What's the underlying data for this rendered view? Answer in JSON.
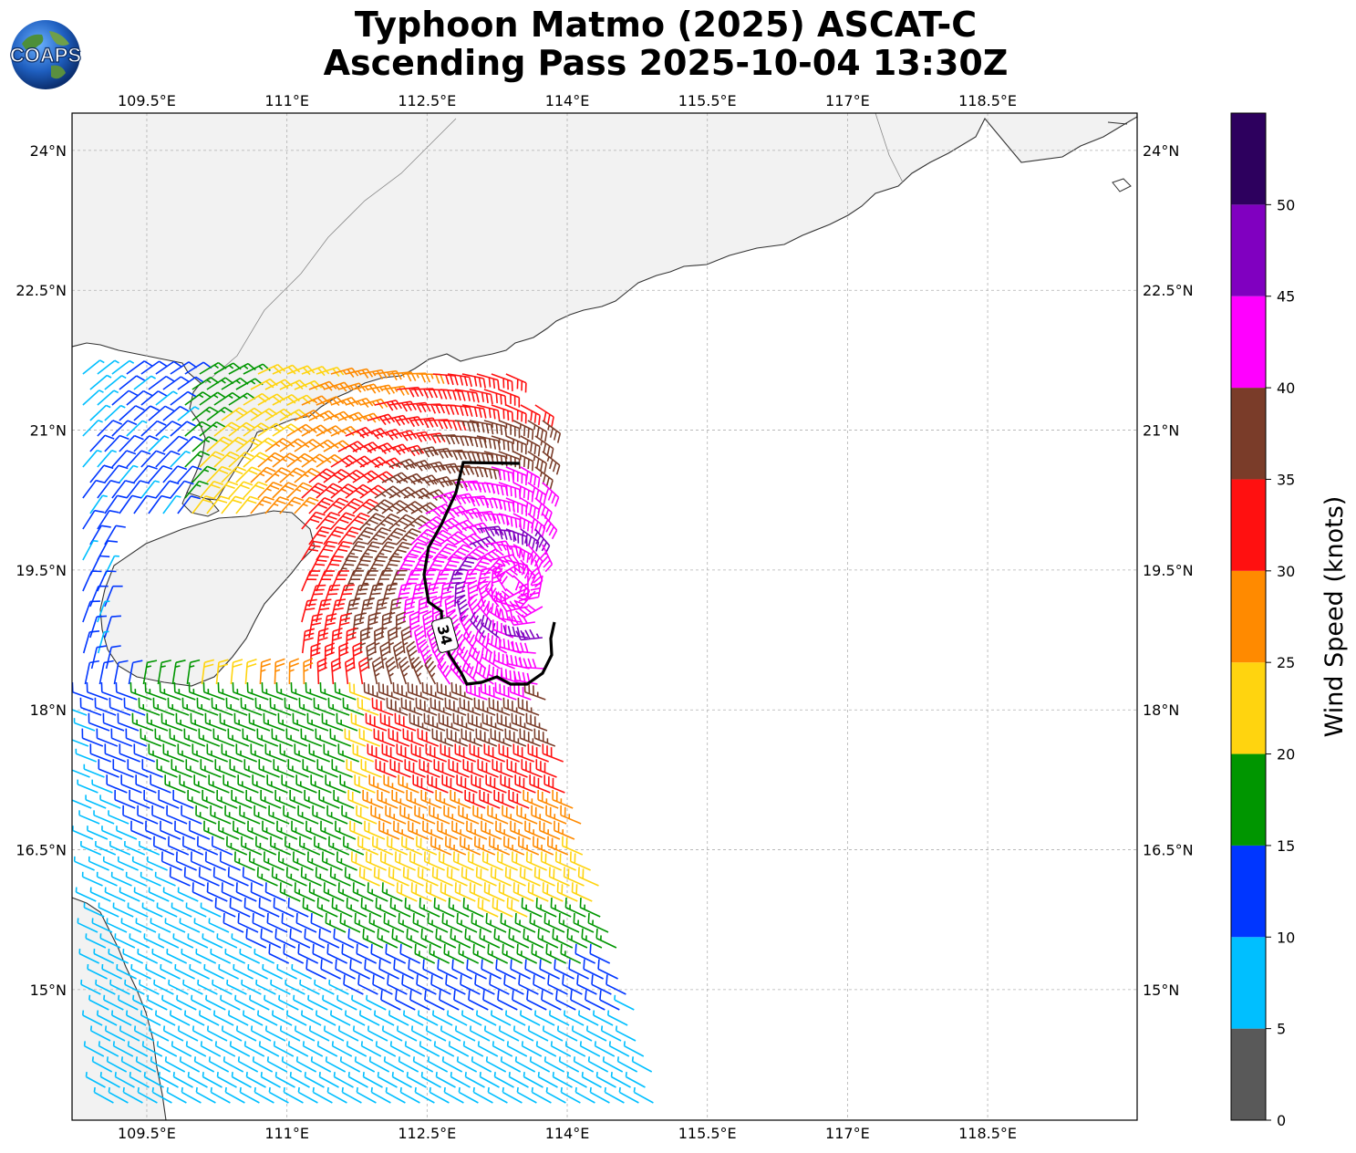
{
  "title": {
    "line1": "Typhoon Matmo (2025) ASCAT-C",
    "line2": "Ascending Pass 2025-10-04 13:30Z"
  },
  "logo": {
    "text": "COAPS"
  },
  "map": {
    "lon_range": [
      108.7,
      120.1
    ],
    "lat_range": [
      13.6,
      24.4
    ],
    "lon_ticks": [
      "109.5°E",
      "111°E",
      "112.5°E",
      "114°E",
      "115.5°E",
      "117°E",
      "118.5°E"
    ],
    "lat_ticks": [
      "24°N",
      "22.5°N",
      "21°N",
      "19.5°N",
      "18°N",
      "16.5°N",
      "15°N"
    ],
    "contour_label": "34",
    "land_color": "#f2f2f2",
    "coast_color": "#333333"
  },
  "colorbar": {
    "label": "Wind Speed (knots)",
    "ticks": [
      "0",
      "5",
      "10",
      "15",
      "20",
      "25",
      "30",
      "35",
      "40",
      "45",
      "50"
    ],
    "bins": [
      {
        "min": 0,
        "max": 5,
        "color": "#595959"
      },
      {
        "min": 5,
        "max": 10,
        "color": "#00bfff"
      },
      {
        "min": 10,
        "max": 15,
        "color": "#0036ff"
      },
      {
        "min": 15,
        "max": 20,
        "color": "#009600"
      },
      {
        "min": 20,
        "max": 25,
        "color": "#ffd40f"
      },
      {
        "min": 25,
        "max": 30,
        "color": "#ff8a00"
      },
      {
        "min": 30,
        "max": 35,
        "color": "#ff1010"
      },
      {
        "min": 35,
        "max": 40,
        "color": "#7a3c29"
      },
      {
        "min": 40,
        "max": 45,
        "color": "#ff00ff"
      },
      {
        "min": 45,
        "max": 50,
        "color": "#8000c0"
      },
      {
        "min": 50,
        "max": 55,
        "color": "#2d005e"
      }
    ]
  }
}
